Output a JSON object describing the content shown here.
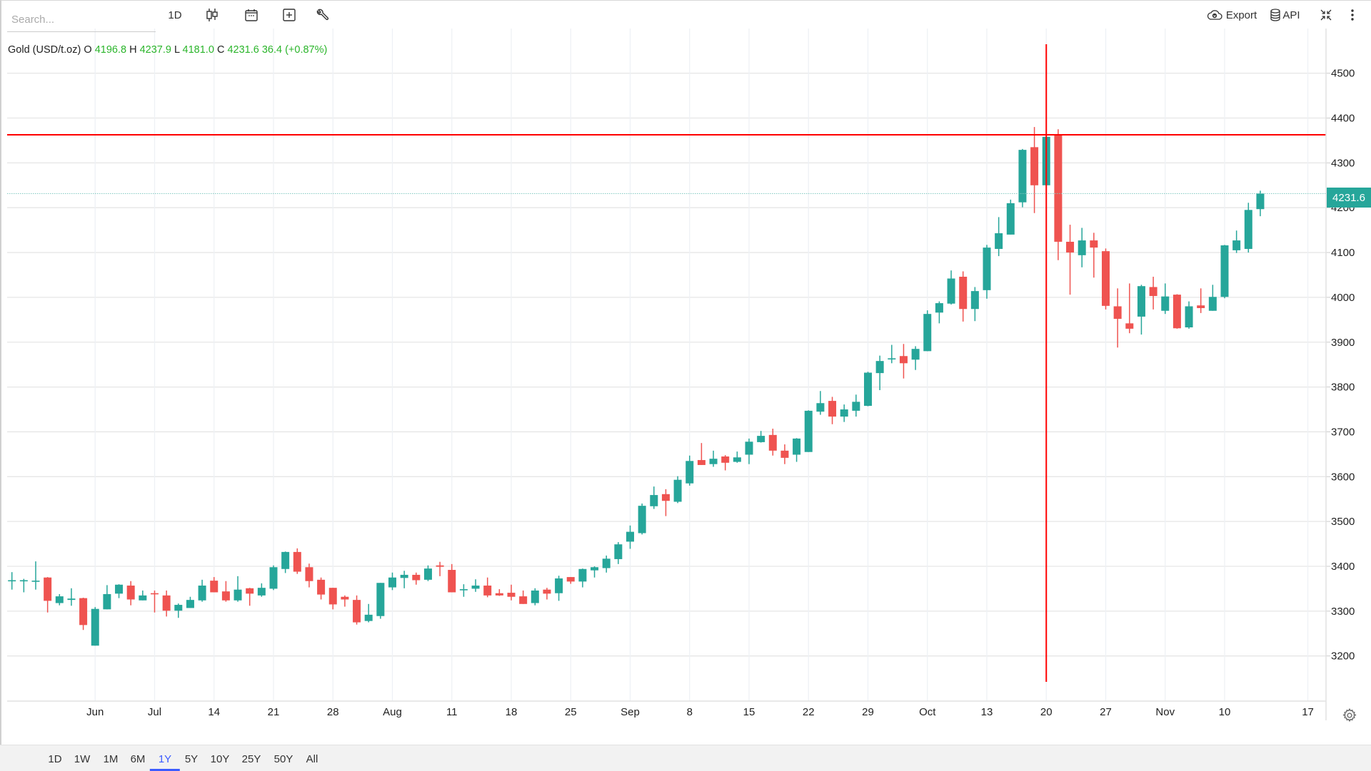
{
  "toolbar": {
    "search_placeholder": "Search...",
    "interval": "1D",
    "export_label": "Export",
    "api_label": "API"
  },
  "legend": {
    "symbol": "Gold (USD/t.oz)",
    "o_label": "O",
    "open": "4196.8",
    "h_label": "H",
    "high": "4237.9",
    "l_label": "L",
    "low": "4181.0",
    "c_label": "C",
    "close": "4231.6",
    "change": "36.4 (+0.87%)"
  },
  "price_label": "4231.6",
  "ranges": [
    "1D",
    "1W",
    "1M",
    "6M",
    "1Y",
    "5Y",
    "10Y",
    "25Y",
    "50Y",
    "All"
  ],
  "active_range": "1Y",
  "colors": {
    "up": "#26a69a",
    "down": "#ef5350",
    "crosshair": "#ff0000",
    "accent": "#3b5bff"
  },
  "chart_data": {
    "type": "candlestick",
    "title": "Gold (USD/t.oz)",
    "ylim": [
      3140,
      4560
    ],
    "y_ticks": [
      3200,
      3300,
      3400,
      3500,
      3600,
      3700,
      3800,
      3900,
      4000,
      4100,
      4200,
      4300,
      4400,
      4500
    ],
    "x_ticks": [
      {
        "label": "Jun",
        "index": 7
      },
      {
        "label": "Jul",
        "index": 12
      },
      {
        "label": "14",
        "index": 17
      },
      {
        "label": "21",
        "index": 22
      },
      {
        "label": "28",
        "index": 27
      },
      {
        "label": "Aug",
        "index": 32
      },
      {
        "label": "11",
        "index": 37
      },
      {
        "label": "18",
        "index": 42
      },
      {
        "label": "25",
        "index": 47
      },
      {
        "label": "Sep",
        "index": 52
      },
      {
        "label": "8",
        "index": 57
      },
      {
        "label": "15",
        "index": 62
      },
      {
        "label": "22",
        "index": 67
      },
      {
        "label": "29",
        "index": 72
      },
      {
        "label": "Oct",
        "index": 77
      },
      {
        "label": "13",
        "index": 82
      },
      {
        "label": "20",
        "index": 87
      },
      {
        "label": "27",
        "index": 92
      },
      {
        "label": "Nov",
        "index": 97
      },
      {
        "label": "10",
        "index": 102
      },
      {
        "label": "17",
        "index": 109
      }
    ],
    "crosshair": {
      "index": 87,
      "price": 4362.6
    },
    "last_price": 4231.6,
    "ohlc_fields": [
      "open",
      "high",
      "low",
      "close"
    ],
    "candles": [
      [
        3369,
        3387,
        3348,
        3369
      ],
      [
        3369,
        3372,
        3342,
        3369
      ],
      [
        3366,
        3411,
        3348,
        3368
      ],
      [
        3375,
        3376,
        3297,
        3323
      ],
      [
        3318,
        3338,
        3313,
        3333
      ],
      [
        3325,
        3351,
        3312,
        3328
      ],
      [
        3329,
        3330,
        3258,
        3269
      ],
      [
        3223,
        3309,
        3223,
        3305
      ],
      [
        3304,
        3358,
        3304,
        3338
      ],
      [
        3339,
        3360,
        3329,
        3359
      ],
      [
        3357,
        3367,
        3313,
        3326
      ],
      [
        3324,
        3346,
        3324,
        3335
      ],
      [
        3340,
        3346,
        3297,
        3338
      ],
      [
        3335,
        3346,
        3288,
        3301
      ],
      [
        3301,
        3317,
        3285,
        3314
      ],
      [
        3307,
        3332,
        3307,
        3325
      ],
      [
        3324,
        3370,
        3321,
        3357
      ],
      [
        3368,
        3376,
        3342,
        3342
      ],
      [
        3344,
        3367,
        3321,
        3324
      ],
      [
        3324,
        3378,
        3321,
        3348
      ],
      [
        3351,
        3352,
        3312,
        3339
      ],
      [
        3335,
        3362,
        3332,
        3352
      ],
      [
        3350,
        3402,
        3347,
        3398
      ],
      [
        3394,
        3433,
        3385,
        3432
      ],
      [
        3432,
        3440,
        3383,
        3388
      ],
      [
        3398,
        3406,
        3353,
        3367
      ],
      [
        3370,
        3375,
        3326,
        3337
      ],
      [
        3352,
        3352,
        3304,
        3315
      ],
      [
        3332,
        3335,
        3310,
        3326
      ],
      [
        3325,
        3335,
        3270,
        3275
      ],
      [
        3278,
        3316,
        3275,
        3292
      ],
      [
        3289,
        3363,
        3283,
        3363
      ],
      [
        3353,
        3386,
        3347,
        3375
      ],
      [
        3374,
        3390,
        3351,
        3381
      ],
      [
        3381,
        3386,
        3359,
        3369
      ],
      [
        3370,
        3402,
        3367,
        3395
      ],
      [
        3402,
        3410,
        3378,
        3399
      ],
      [
        3392,
        3405,
        3342,
        3342
      ],
      [
        3347,
        3360,
        3332,
        3349
      ],
      [
        3350,
        3371,
        3343,
        3357
      ],
      [
        3357,
        3375,
        3331,
        3335
      ],
      [
        3340,
        3349,
        3334,
        3335
      ],
      [
        3341,
        3359,
        3324,
        3332
      ],
      [
        3333,
        3346,
        3316,
        3316
      ],
      [
        3318,
        3351,
        3313,
        3346
      ],
      [
        3348,
        3352,
        3326,
        3339
      ],
      [
        3340,
        3379,
        3323,
        3373
      ],
      [
        3376,
        3376,
        3361,
        3366
      ],
      [
        3366,
        3395,
        3353,
        3394
      ],
      [
        3391,
        3400,
        3375,
        3398
      ],
      [
        3396,
        3424,
        3386,
        3417
      ],
      [
        3416,
        3454,
        3405,
        3449
      ],
      [
        3455,
        3491,
        3439,
        3477
      ],
      [
        3474,
        3540,
        3471,
        3535
      ],
      [
        3534,
        3578,
        3528,
        3559
      ],
      [
        3561,
        3572,
        3512,
        3546
      ],
      [
        3544,
        3601,
        3541,
        3593
      ],
      [
        3585,
        3647,
        3580,
        3635
      ],
      [
        3637,
        3675,
        3626,
        3626
      ],
      [
        3628,
        3658,
        3622,
        3640
      ],
      [
        3645,
        3648,
        3614,
        3631
      ],
      [
        3633,
        3656,
        3631,
        3643
      ],
      [
        3649,
        3685,
        3628,
        3678
      ],
      [
        3677,
        3702,
        3676,
        3691
      ],
      [
        3693,
        3707,
        3647,
        3658
      ],
      [
        3658,
        3672,
        3628,
        3642
      ],
      [
        3649,
        3686,
        3633,
        3685
      ],
      [
        3655,
        3748,
        3655,
        3747
      ],
      [
        3745,
        3791,
        3738,
        3764
      ],
      [
        3769,
        3778,
        3717,
        3734
      ],
      [
        3734,
        3761,
        3722,
        3750
      ],
      [
        3747,
        3783,
        3734,
        3767
      ],
      [
        3758,
        3834,
        3757,
        3832
      ],
      [
        3831,
        3870,
        3793,
        3858
      ],
      [
        3863,
        3894,
        3853,
        3864
      ],
      [
        3869,
        3896,
        3819,
        3853
      ],
      [
        3861,
        3891,
        3838,
        3885
      ],
      [
        3880,
        3971,
        3880,
        3963
      ],
      [
        3966,
        3991,
        3942,
        3987
      ],
      [
        3986,
        4060,
        3984,
        4042
      ],
      [
        4046,
        4058,
        3946,
        3974
      ],
      [
        3974,
        4023,
        3947,
        4014
      ],
      [
        4016,
        4117,
        3997,
        4111
      ],
      [
        4108,
        4179,
        4092,
        4143
      ],
      [
        4140,
        4218,
        4140,
        4210
      ],
      [
        4212,
        4331,
        4201,
        4329
      ],
      [
        4335,
        4380,
        4188,
        4250
      ],
      [
        4250,
        4363,
        4250,
        4358
      ],
      [
        4363,
        4375,
        4083,
        4124
      ],
      [
        4124,
        4162,
        4006,
        4100
      ],
      [
        4094,
        4155,
        4067,
        4127
      ],
      [
        4127,
        4144,
        4044,
        4111
      ],
      [
        4103,
        4109,
        3973,
        3981
      ],
      [
        3980,
        4020,
        3888,
        3952
      ],
      [
        3942,
        4031,
        3920,
        3930
      ],
      [
        3957,
        4028,
        3917,
        4025
      ],
      [
        4023,
        4046,
        3973,
        4003
      ],
      [
        3970,
        4031,
        3963,
        4002
      ],
      [
        4006,
        4007,
        3930,
        3931
      ],
      [
        3933,
        3991,
        3930,
        3980
      ],
      [
        3982,
        4020,
        3965,
        3976
      ],
      [
        3970,
        4028,
        3970,
        4001
      ],
      [
        4001,
        4117,
        3998,
        4116
      ],
      [
        4105,
        4149,
        4099,
        4127
      ],
      [
        4108,
        4211,
        4100,
        4195
      ],
      [
        4196.8,
        4237.9,
        4181.0,
        4231.6
      ]
    ]
  }
}
